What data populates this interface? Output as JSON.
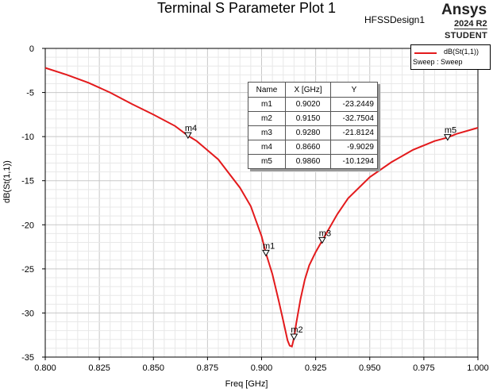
{
  "header": {
    "title": "Terminal S Parameter Plot 1",
    "design": "HFSSDesign1",
    "brand": "Ansys",
    "version": "2024 R2",
    "edition": "STUDENT"
  },
  "legend": {
    "series_label": "dB(St(1,1))",
    "sweep_label": "Sweep : Sweep",
    "color": "#e31a1c"
  },
  "marker_table": {
    "headers": [
      "Name",
      "X [GHz]",
      "Y"
    ],
    "rows": [
      {
        "name": "m1",
        "x": "0.9020",
        "y": "-23.2449"
      },
      {
        "name": "m2",
        "x": "0.9150",
        "y": "-32.7504"
      },
      {
        "name": "m3",
        "x": "0.9280",
        "y": "-21.8124"
      },
      {
        "name": "m4",
        "x": "0.8660",
        "y": "-9.9029"
      },
      {
        "name": "m5",
        "x": "0.9860",
        "y": "-10.1294"
      }
    ]
  },
  "chart_data": {
    "type": "line",
    "title": "Terminal S Parameter Plot 1",
    "xlabel": "Freq [GHz]",
    "ylabel": "dB(St(1,1))",
    "xlim": [
      0.8,
      1.0
    ],
    "ylim": [
      -35,
      0
    ],
    "xticks": [
      "0.800",
      "0.825",
      "0.850",
      "0.875",
      "0.900",
      "0.925",
      "0.950",
      "0.975",
      "1.000"
    ],
    "yticks": [
      "0",
      "-5",
      "-10",
      "-15",
      "-20",
      "-25",
      "-30",
      "-35"
    ],
    "grid": true,
    "legend_position": "top-right",
    "series": [
      {
        "name": "dB(St(1,1))",
        "color": "#e31a1c",
        "x": [
          0.8,
          0.81,
          0.82,
          0.83,
          0.84,
          0.85,
          0.86,
          0.866,
          0.87,
          0.88,
          0.89,
          0.895,
          0.9,
          0.902,
          0.905,
          0.908,
          0.91,
          0.912,
          0.913,
          0.914,
          0.915,
          0.916,
          0.918,
          0.92,
          0.922,
          0.925,
          0.928,
          0.935,
          0.94,
          0.95,
          0.96,
          0.97,
          0.98,
          0.986,
          0.99,
          1.0
        ],
        "y": [
          -2.2,
          -3.0,
          -3.9,
          -5.0,
          -6.3,
          -7.5,
          -8.8,
          -9.9,
          -10.5,
          -12.6,
          -15.8,
          -17.9,
          -21.3,
          -23.2,
          -25.6,
          -28.7,
          -30.9,
          -33.1,
          -33.7,
          -33.8,
          -32.8,
          -31.2,
          -28.4,
          -26.2,
          -24.6,
          -23.1,
          -21.8,
          -18.8,
          -17.0,
          -14.6,
          -12.9,
          -11.5,
          -10.5,
          -10.1,
          -9.7,
          -9.0
        ]
      }
    ],
    "markers": [
      {
        "name": "m1",
        "x": 0.902,
        "y": -23.2449
      },
      {
        "name": "m2",
        "x": 0.915,
        "y": -32.7504
      },
      {
        "name": "m3",
        "x": 0.928,
        "y": -21.8124
      },
      {
        "name": "m4",
        "x": 0.866,
        "y": -9.9029
      },
      {
        "name": "m5",
        "x": 0.986,
        "y": -10.1294
      }
    ]
  }
}
